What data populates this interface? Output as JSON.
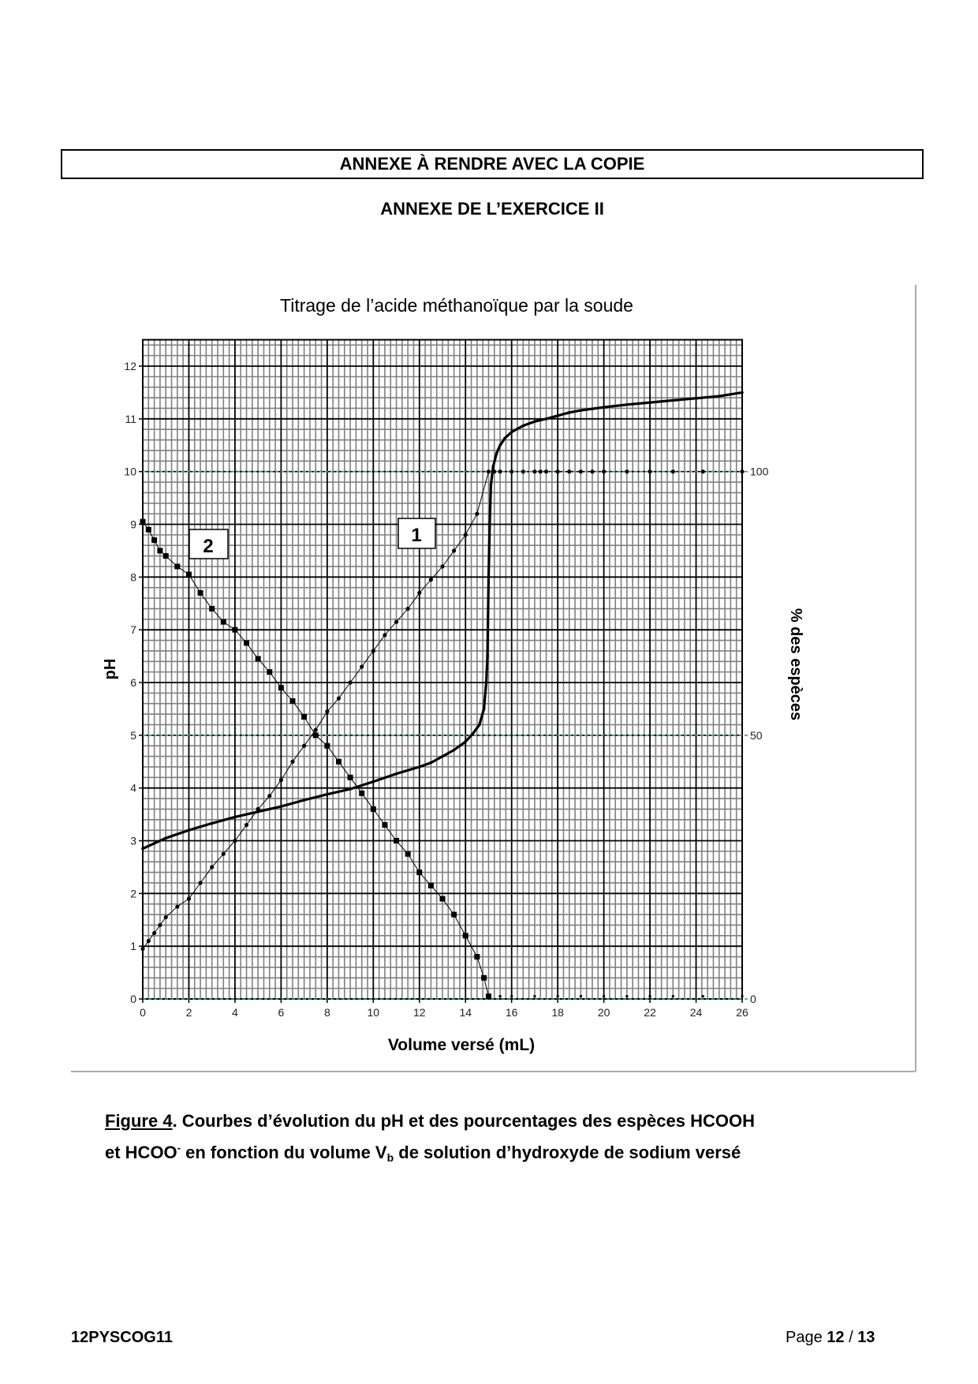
{
  "header": {
    "box_title": "ANNEXE À RENDRE AVEC LA COPIE",
    "subtitle": "ANNEXE DE L’EXERCICE II"
  },
  "chart_data": {
    "type": "line",
    "title": "Titrage de l’acide méthanoïque par la soude",
    "xlabel": "Volume versé (mL)",
    "ylabel": "pH",
    "y2label": "% des espèces",
    "xlim": [
      0,
      26
    ],
    "ylim": [
      0,
      12.5
    ],
    "y2lim": [
      0,
      125
    ],
    "xticks": [
      "0",
      "2",
      "4",
      "6",
      "8",
      "10",
      "12",
      "14",
      "16",
      "18",
      "20",
      "22",
      "24",
      "26"
    ],
    "yticks": [
      "0",
      "1",
      "2",
      "3",
      "4",
      "5",
      "6",
      "7",
      "8",
      "9",
      "10",
      "11",
      "12"
    ],
    "y2ticks": [
      "0",
      "50",
      "100"
    ],
    "grid": true,
    "colors": {
      "grid_minor": "#808080",
      "grid_major": "#000000",
      "reference_dashed": "#3a9a7a",
      "curve": "#000000"
    },
    "annotations": [
      {
        "label": "1",
        "series": "curve-1"
      },
      {
        "label": "2",
        "series": "curve-2"
      }
    ],
    "series": [
      {
        "id": "ph",
        "axis": "pH",
        "style": "thick-line",
        "x": [
          0,
          0.5,
          1,
          2,
          3,
          4,
          5,
          6,
          7,
          8,
          9,
          10,
          11,
          12,
          12.5,
          13,
          13.5,
          14,
          14.3,
          14.6,
          14.8,
          14.9,
          14.95,
          15.0,
          15.05,
          15.1,
          15.2,
          15.35,
          15.5,
          15.7,
          16,
          16.5,
          17,
          17.5,
          18,
          18.5,
          19,
          20,
          21,
          22,
          23,
          24,
          25,
          26
        ],
        "y": [
          2.85,
          2.95,
          3.05,
          3.2,
          3.33,
          3.45,
          3.55,
          3.65,
          3.77,
          3.88,
          3.98,
          4.12,
          4.27,
          4.4,
          4.48,
          4.6,
          4.72,
          4.88,
          5.02,
          5.2,
          5.5,
          6.0,
          6.5,
          8.0,
          9.0,
          9.75,
          10.1,
          10.35,
          10.5,
          10.63,
          10.75,
          10.87,
          10.95,
          11.0,
          11.06,
          11.12,
          11.16,
          11.22,
          11.27,
          11.31,
          11.35,
          11.39,
          11.43,
          11.5
        ]
      },
      {
        "id": "curve-1",
        "axis": "%",
        "style": "small-dots",
        "x": [
          0,
          0.25,
          0.5,
          0.75,
          1,
          1.5,
          2,
          2.5,
          3,
          3.5,
          4,
          4.5,
          5,
          5.5,
          6,
          6.5,
          7,
          7.5,
          8,
          8.5,
          9,
          9.5,
          10,
          10.5,
          11,
          11.5,
          12,
          12.5,
          13,
          13.5,
          14,
          14.5,
          15,
          15.25,
          15.5,
          16,
          16.5,
          17,
          17.25,
          17.5,
          18,
          18.5,
          19,
          19.5,
          20,
          21,
          22,
          23,
          24.3,
          26
        ],
        "y": [
          9.5,
          11,
          12.5,
          14,
          15.5,
          17.5,
          19,
          22,
          25,
          27.5,
          30,
          33,
          36,
          38.5,
          41.5,
          45,
          48,
          51,
          54.5,
          57,
          60,
          63,
          66,
          69,
          71.5,
          74,
          77,
          79.5,
          82,
          85,
          88,
          92,
          100,
          100,
          100,
          100,
          100,
          100,
          100,
          100,
          100,
          100,
          100,
          100,
          100,
          100,
          100,
          100,
          100,
          100
        ]
      },
      {
        "id": "curve-2",
        "axis": "%",
        "style": "square-markers",
        "x": [
          0,
          0.25,
          0.5,
          0.75,
          1,
          1.5,
          2,
          2.5,
          3,
          3.5,
          4,
          4.5,
          5,
          5.5,
          6,
          6.5,
          7,
          7.5,
          8,
          8.5,
          9,
          9.5,
          10,
          10.5,
          11,
          11.5,
          12,
          12.5,
          13,
          13.5,
          14,
          14.5,
          14.8,
          15,
          15.5,
          16,
          17,
          18,
          19,
          20,
          21,
          22,
          23,
          24.3,
          26
        ],
        "y": [
          90.5,
          89,
          87,
          85,
          84,
          82,
          80.5,
          77,
          74,
          71.5,
          70,
          67.5,
          64.5,
          62,
          59,
          56.5,
          53.5,
          50,
          48,
          45,
          42,
          39,
          36,
          33,
          30,
          27.5,
          24,
          21.5,
          19,
          16,
          12,
          8,
          4,
          0.5,
          0.5,
          0.5,
          0.5,
          0.5,
          0.5,
          0.5,
          0.5,
          0.5,
          0.5,
          0.5,
          0.5
        ]
      }
    ]
  },
  "caption": {
    "figure_label": "Figure 4",
    "line1_rest": ".  Courbes d’évolution du pH et des pourcentages des espèces HCOOH",
    "line2_a": "et HCOO",
    "line2_sup": "-",
    "line2_b": " en fonction du volume V",
    "line2_sub": "b",
    "line2_c": " de solution d’hydroxyde de sodium versé"
  },
  "footer": {
    "code": "12PYSCOG11",
    "page_word": "Page ",
    "page_current": "12",
    "page_sep": " / ",
    "page_total": "13"
  }
}
